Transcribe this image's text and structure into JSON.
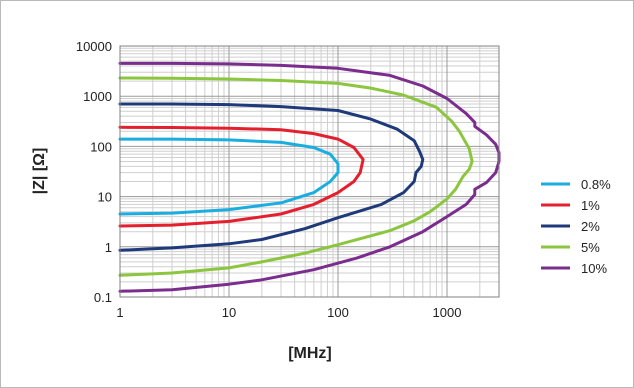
{
  "chart_data": {
    "type": "line",
    "xlabel": "[MHz]",
    "ylabel": "|Z| [Ω]",
    "xscale": "log",
    "yscale": "log",
    "xlim": [
      1,
      3000
    ],
    "ylim": [
      0.1,
      10000
    ],
    "x_ticks": [
      "1",
      "10",
      "100",
      "1000"
    ],
    "y_ticks": [
      "0.1",
      "1",
      "10",
      "100",
      "1000",
      "10000"
    ],
    "grid": true,
    "legend": "right",
    "series": [
      {
        "name": "0.8%",
        "color": "#1aaee0",
        "points": [
          [
            1,
            140
          ],
          [
            3,
            140
          ],
          [
            10,
            135
          ],
          [
            30,
            120
          ],
          [
            60,
            95
          ],
          [
            85,
            70
          ],
          [
            100,
            45
          ],
          [
            100,
            30
          ],
          [
            85,
            20
          ],
          [
            60,
            12
          ],
          [
            30,
            7.5
          ],
          [
            10,
            5.5
          ],
          [
            3,
            4.7
          ],
          [
            1,
            4.5
          ]
        ]
      },
      {
        "name": "1%",
        "color": "#e5202e",
        "points": [
          [
            1,
            240
          ],
          [
            3,
            238
          ],
          [
            10,
            230
          ],
          [
            30,
            215
          ],
          [
            60,
            180
          ],
          [
            100,
            140
          ],
          [
            140,
            95
          ],
          [
            170,
            55
          ],
          [
            160,
            30
          ],
          [
            140,
            20
          ],
          [
            100,
            12
          ],
          [
            60,
            7
          ],
          [
            30,
            4.5
          ],
          [
            10,
            3.2
          ],
          [
            3,
            2.7
          ],
          [
            1,
            2.6
          ]
        ]
      },
      {
        "name": "2%",
        "color": "#1f3a7a",
        "points": [
          [
            1,
            700
          ],
          [
            3,
            700
          ],
          [
            10,
            680
          ],
          [
            30,
            620
          ],
          [
            100,
            520
          ],
          [
            200,
            350
          ],
          [
            350,
            220
          ],
          [
            500,
            130
          ],
          [
            560,
            80
          ],
          [
            600,
            55
          ],
          [
            580,
            40
          ],
          [
            520,
            30
          ],
          [
            500,
            20
          ],
          [
            400,
            12
          ],
          [
            250,
            7
          ],
          [
            100,
            3.8
          ],
          [
            50,
            2.3
          ],
          [
            20,
            1.4
          ],
          [
            10,
            1.15
          ],
          [
            3,
            0.95
          ],
          [
            1,
            0.85
          ]
        ]
      },
      {
        "name": "5%",
        "color": "#8cc63f",
        "points": [
          [
            1,
            2300
          ],
          [
            3,
            2280
          ],
          [
            10,
            2200
          ],
          [
            30,
            2050
          ],
          [
            100,
            1800
          ],
          [
            200,
            1450
          ],
          [
            400,
            1050
          ],
          [
            800,
            600
          ],
          [
            1100,
            320
          ],
          [
            1300,
            200
          ],
          [
            1600,
            90
          ],
          [
            1700,
            50
          ],
          [
            1600,
            35
          ],
          [
            1400,
            25
          ],
          [
            1200,
            14
          ],
          [
            1000,
            9
          ],
          [
            700,
            5
          ],
          [
            500,
            3.3
          ],
          [
            300,
            2.1
          ],
          [
            100,
            1.1
          ],
          [
            50,
            0.75
          ],
          [
            20,
            0.5
          ],
          [
            10,
            0.38
          ],
          [
            3,
            0.3
          ],
          [
            1,
            0.27
          ]
        ]
      },
      {
        "name": "10%",
        "color": "#7b2d8e",
        "points": [
          [
            1,
            4500
          ],
          [
            3,
            4500
          ],
          [
            10,
            4400
          ],
          [
            30,
            4100
          ],
          [
            100,
            3600
          ],
          [
            300,
            2600
          ],
          [
            600,
            1600
          ],
          [
            1000,
            900
          ],
          [
            1500,
            450
          ],
          [
            1800,
            300
          ],
          [
            1800,
            250
          ],
          [
            2300,
            170
          ],
          [
            2800,
            110
          ],
          [
            3000,
            75
          ],
          [
            3000,
            50
          ],
          [
            2800,
            30
          ],
          [
            2300,
            19
          ],
          [
            1800,
            14
          ],
          [
            1800,
            11
          ],
          [
            1500,
            7
          ],
          [
            1000,
            4
          ],
          [
            600,
            2
          ],
          [
            300,
            1
          ],
          [
            150,
            0.6
          ],
          [
            60,
            0.35
          ],
          [
            20,
            0.22
          ],
          [
            10,
            0.18
          ],
          [
            3,
            0.14
          ],
          [
            1,
            0.13
          ]
        ]
      }
    ]
  }
}
